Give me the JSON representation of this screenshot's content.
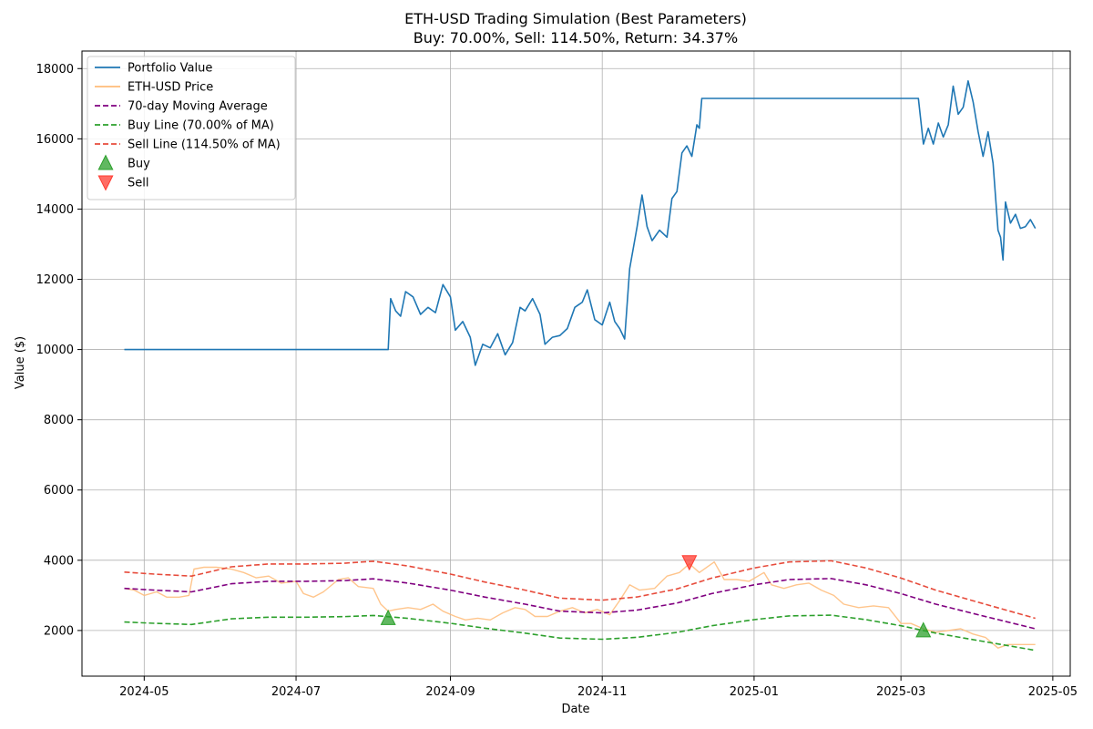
{
  "chart_data": {
    "type": "line",
    "title": "ETH-USD Trading Simulation (Best Parameters)",
    "subtitle": "Buy: 70.00%, Sell: 114.50%, Return: 34.37%",
    "xlabel": "Date",
    "ylabel": "Value ($)",
    "ylim": [
      700,
      18500
    ],
    "yticks": [
      2000,
      4000,
      6000,
      8000,
      10000,
      12000,
      14000,
      16000,
      18000
    ],
    "x_range": [
      "2024-04-06",
      "2025-05-08"
    ],
    "x_ticks": [
      {
        "date": "2024-05-01",
        "label": "2024-05"
      },
      {
        "date": "2024-07-01",
        "label": "2024-07"
      },
      {
        "date": "2024-09-01",
        "label": "2024-09"
      },
      {
        "date": "2024-11-01",
        "label": "2024-11"
      },
      {
        "date": "2025-01-01",
        "label": "2025-01"
      },
      {
        "date": "2025-03-01",
        "label": "2025-03"
      },
      {
        "date": "2025-05-01",
        "label": "2025-05"
      }
    ],
    "grid": true,
    "legend_position": "top-left",
    "series": [
      {
        "name": "Portfolio Value",
        "color": "#1f77b4",
        "style": "solid",
        "points": [
          [
            "2024-04-23",
            10000
          ],
          [
            "2024-08-07",
            10000
          ],
          [
            "2024-08-08",
            11450
          ],
          [
            "2024-08-10",
            11100
          ],
          [
            "2024-08-12",
            10950
          ],
          [
            "2024-08-14",
            11650
          ],
          [
            "2024-08-17",
            11500
          ],
          [
            "2024-08-20",
            11000
          ],
          [
            "2024-08-23",
            11200
          ],
          [
            "2024-08-26",
            11050
          ],
          [
            "2024-08-29",
            11850
          ],
          [
            "2024-09-01",
            11500
          ],
          [
            "2024-09-03",
            10550
          ],
          [
            "2024-09-06",
            10800
          ],
          [
            "2024-09-09",
            10350
          ],
          [
            "2024-09-11",
            9550
          ],
          [
            "2024-09-14",
            10150
          ],
          [
            "2024-09-17",
            10050
          ],
          [
            "2024-09-20",
            10450
          ],
          [
            "2024-09-23",
            9850
          ],
          [
            "2024-09-26",
            10200
          ],
          [
            "2024-09-29",
            11200
          ],
          [
            "2024-10-01",
            11100
          ],
          [
            "2024-10-04",
            11450
          ],
          [
            "2024-10-07",
            11000
          ],
          [
            "2024-10-09",
            10150
          ],
          [
            "2024-10-12",
            10350
          ],
          [
            "2024-10-15",
            10400
          ],
          [
            "2024-10-18",
            10600
          ],
          [
            "2024-10-21",
            11200
          ],
          [
            "2024-10-24",
            11350
          ],
          [
            "2024-10-26",
            11700
          ],
          [
            "2024-10-29",
            10850
          ],
          [
            "2024-11-01",
            10700
          ],
          [
            "2024-11-04",
            11350
          ],
          [
            "2024-11-06",
            10800
          ],
          [
            "2024-11-08",
            10600
          ],
          [
            "2024-11-10",
            10300
          ],
          [
            "2024-11-12",
            12300
          ],
          [
            "2024-11-15",
            13500
          ],
          [
            "2024-11-17",
            14400
          ],
          [
            "2024-11-19",
            13500
          ],
          [
            "2024-11-21",
            13100
          ],
          [
            "2024-11-24",
            13400
          ],
          [
            "2024-11-27",
            13200
          ],
          [
            "2024-11-29",
            14300
          ],
          [
            "2024-12-01",
            14500
          ],
          [
            "2024-12-03",
            15600
          ],
          [
            "2024-12-05",
            15800
          ],
          [
            "2024-12-07",
            15500
          ],
          [
            "2024-12-09",
            16400
          ],
          [
            "2024-12-10",
            16300
          ],
          [
            "2024-12-11",
            17150
          ],
          [
            "2025-03-08",
            17150
          ],
          [
            "2025-03-10",
            15850
          ],
          [
            "2025-03-12",
            16300
          ],
          [
            "2025-03-14",
            15850
          ],
          [
            "2025-03-16",
            16450
          ],
          [
            "2025-03-18",
            16050
          ],
          [
            "2025-03-20",
            16400
          ],
          [
            "2025-03-22",
            17500
          ],
          [
            "2025-03-24",
            16700
          ],
          [
            "2025-03-26",
            16900
          ],
          [
            "2025-03-28",
            17650
          ],
          [
            "2025-03-30",
            17050
          ],
          [
            "2025-04-01",
            16200
          ],
          [
            "2025-04-03",
            15500
          ],
          [
            "2025-04-05",
            16200
          ],
          [
            "2025-04-07",
            15300
          ],
          [
            "2025-04-09",
            13400
          ],
          [
            "2025-04-10",
            13200
          ],
          [
            "2025-04-11",
            12550
          ],
          [
            "2025-04-12",
            14200
          ],
          [
            "2025-04-14",
            13600
          ],
          [
            "2025-04-16",
            13850
          ],
          [
            "2025-04-18",
            13450
          ],
          [
            "2025-04-20",
            13500
          ],
          [
            "2025-04-22",
            13700
          ],
          [
            "2025-04-24",
            13450
          ]
        ]
      },
      {
        "name": "ETH-USD Price",
        "color": "#ffbb78",
        "style": "solid",
        "points": [
          [
            "2024-04-23",
            3200
          ],
          [
            "2024-04-27",
            3150
          ],
          [
            "2024-05-01",
            3000
          ],
          [
            "2024-05-06",
            3100
          ],
          [
            "2024-05-10",
            2950
          ],
          [
            "2024-05-15",
            2950
          ],
          [
            "2024-05-19",
            3000
          ],
          [
            "2024-05-21",
            3750
          ],
          [
            "2024-05-25",
            3800
          ],
          [
            "2024-05-30",
            3800
          ],
          [
            "2024-06-05",
            3750
          ],
          [
            "2024-06-10",
            3650
          ],
          [
            "2024-06-15",
            3500
          ],
          [
            "2024-06-20",
            3550
          ],
          [
            "2024-06-25",
            3350
          ],
          [
            "2024-07-01",
            3400
          ],
          [
            "2024-07-04",
            3050
          ],
          [
            "2024-07-08",
            2950
          ],
          [
            "2024-07-12",
            3100
          ],
          [
            "2024-07-18",
            3450
          ],
          [
            "2024-07-22",
            3500
          ],
          [
            "2024-07-26",
            3250
          ],
          [
            "2024-08-01",
            3200
          ],
          [
            "2024-08-04",
            2750
          ],
          [
            "2024-08-07",
            2550
          ],
          [
            "2024-08-10",
            2600
          ],
          [
            "2024-08-15",
            2650
          ],
          [
            "2024-08-20",
            2600
          ],
          [
            "2024-08-25",
            2750
          ],
          [
            "2024-08-29",
            2550
          ],
          [
            "2024-09-03",
            2400
          ],
          [
            "2024-09-07",
            2300
          ],
          [
            "2024-09-12",
            2350
          ],
          [
            "2024-09-17",
            2300
          ],
          [
            "2024-09-22",
            2500
          ],
          [
            "2024-09-27",
            2650
          ],
          [
            "2024-10-01",
            2600
          ],
          [
            "2024-10-05",
            2400
          ],
          [
            "2024-10-10",
            2400
          ],
          [
            "2024-10-15",
            2550
          ],
          [
            "2024-10-20",
            2650
          ],
          [
            "2024-10-25",
            2500
          ],
          [
            "2024-10-30",
            2600
          ],
          [
            "2024-11-04",
            2450
          ],
          [
            "2024-11-08",
            2850
          ],
          [
            "2024-11-12",
            3300
          ],
          [
            "2024-11-16",
            3150
          ],
          [
            "2024-11-22",
            3200
          ],
          [
            "2024-11-27",
            3550
          ],
          [
            "2024-12-02",
            3650
          ],
          [
            "2024-12-06",
            3900
          ],
          [
            "2024-12-10",
            3650
          ],
          [
            "2024-12-16",
            3950
          ],
          [
            "2024-12-20",
            3450
          ],
          [
            "2024-12-25",
            3450
          ],
          [
            "2024-12-30",
            3400
          ],
          [
            "2025-01-05",
            3650
          ],
          [
            "2025-01-08",
            3300
          ],
          [
            "2025-01-13",
            3200
          ],
          [
            "2025-01-18",
            3300
          ],
          [
            "2025-01-23",
            3350
          ],
          [
            "2025-01-28",
            3150
          ],
          [
            "2025-02-02",
            3000
          ],
          [
            "2025-02-06",
            2750
          ],
          [
            "2025-02-12",
            2650
          ],
          [
            "2025-02-18",
            2700
          ],
          [
            "2025-02-24",
            2650
          ],
          [
            "2025-03-01",
            2200
          ],
          [
            "2025-03-05",
            2200
          ],
          [
            "2025-03-10",
            2050
          ],
          [
            "2025-03-15",
            1950
          ],
          [
            "2025-03-20",
            2000
          ],
          [
            "2025-03-25",
            2050
          ],
          [
            "2025-03-30",
            1900
          ],
          [
            "2025-04-04",
            1800
          ],
          [
            "2025-04-09",
            1500
          ],
          [
            "2025-04-13",
            1600
          ],
          [
            "2025-04-18",
            1600
          ],
          [
            "2025-04-24",
            1600
          ]
        ]
      },
      {
        "name": "70-day Moving Average",
        "color": "#800080",
        "style": "dashed",
        "points": [
          [
            "2024-04-23",
            3200
          ],
          [
            "2024-05-05",
            3150
          ],
          [
            "2024-05-20",
            3100
          ],
          [
            "2024-06-05",
            3330
          ],
          [
            "2024-06-20",
            3400
          ],
          [
            "2024-07-05",
            3400
          ],
          [
            "2024-07-20",
            3420
          ],
          [
            "2024-08-01",
            3470
          ],
          [
            "2024-08-15",
            3350
          ],
          [
            "2024-09-01",
            3150
          ],
          [
            "2024-09-15",
            2950
          ],
          [
            "2024-10-01",
            2750
          ],
          [
            "2024-10-15",
            2550
          ],
          [
            "2024-11-01",
            2500
          ],
          [
            "2024-11-15",
            2580
          ],
          [
            "2024-12-01",
            2780
          ],
          [
            "2024-12-15",
            3050
          ],
          [
            "2025-01-01",
            3300
          ],
          [
            "2025-01-15",
            3450
          ],
          [
            "2025-02-01",
            3480
          ],
          [
            "2025-02-15",
            3300
          ],
          [
            "2025-03-01",
            3050
          ],
          [
            "2025-03-15",
            2750
          ],
          [
            "2025-04-01",
            2450
          ],
          [
            "2025-04-24",
            2050
          ]
        ]
      },
      {
        "name": "Buy Line (70.00% of MA)",
        "color": "#2ca02c",
        "style": "dashed",
        "points": [
          [
            "2024-04-23",
            2240
          ],
          [
            "2024-05-05",
            2205
          ],
          [
            "2024-05-20",
            2170
          ],
          [
            "2024-06-05",
            2331
          ],
          [
            "2024-06-20",
            2380
          ],
          [
            "2024-07-05",
            2380
          ],
          [
            "2024-07-20",
            2394
          ],
          [
            "2024-08-01",
            2429
          ],
          [
            "2024-08-15",
            2345
          ],
          [
            "2024-09-01",
            2205
          ],
          [
            "2024-09-15",
            2065
          ],
          [
            "2024-10-01",
            1925
          ],
          [
            "2024-10-15",
            1785
          ],
          [
            "2024-11-01",
            1750
          ],
          [
            "2024-11-15",
            1806
          ],
          [
            "2024-12-01",
            1946
          ],
          [
            "2024-12-15",
            2135
          ],
          [
            "2025-01-01",
            2310
          ],
          [
            "2025-01-15",
            2415
          ],
          [
            "2025-02-01",
            2436
          ],
          [
            "2025-02-15",
            2310
          ],
          [
            "2025-03-01",
            2135
          ],
          [
            "2025-03-15",
            1925
          ],
          [
            "2025-04-01",
            1715
          ],
          [
            "2025-04-24",
            1435
          ]
        ]
      },
      {
        "name": "Sell Line (114.50% of MA)",
        "color": "#e74c3c",
        "style": "dashed",
        "points": [
          [
            "2024-04-23",
            3664
          ],
          [
            "2024-05-05",
            3607
          ],
          [
            "2024-05-20",
            3550
          ],
          [
            "2024-06-05",
            3813
          ],
          [
            "2024-06-20",
            3893
          ],
          [
            "2024-07-05",
            3893
          ],
          [
            "2024-07-20",
            3916
          ],
          [
            "2024-08-01",
            3973
          ],
          [
            "2024-08-15",
            3836
          ],
          [
            "2024-09-01",
            3607
          ],
          [
            "2024-09-15",
            3378
          ],
          [
            "2024-10-01",
            3149
          ],
          [
            "2024-10-15",
            2920
          ],
          [
            "2024-11-01",
            2863
          ],
          [
            "2024-11-15",
            2954
          ],
          [
            "2024-12-01",
            3183
          ],
          [
            "2024-12-15",
            3492
          ],
          [
            "2025-01-01",
            3779
          ],
          [
            "2025-01-15",
            3950
          ],
          [
            "2025-02-01",
            3985
          ],
          [
            "2025-02-15",
            3779
          ],
          [
            "2025-03-01",
            3492
          ],
          [
            "2025-03-15",
            3149
          ],
          [
            "2025-04-01",
            2805
          ],
          [
            "2025-04-24",
            2347
          ]
        ]
      }
    ],
    "markers": [
      {
        "name": "Buy",
        "shape": "triangle-up",
        "color": "#2ca02c",
        "points": [
          [
            "2024-08-07",
            2350
          ],
          [
            "2025-03-10",
            2000
          ]
        ]
      },
      {
        "name": "Sell",
        "shape": "triangle-down",
        "color": "#ff3b30",
        "points": [
          [
            "2024-12-06",
            3950
          ]
        ]
      }
    ]
  }
}
